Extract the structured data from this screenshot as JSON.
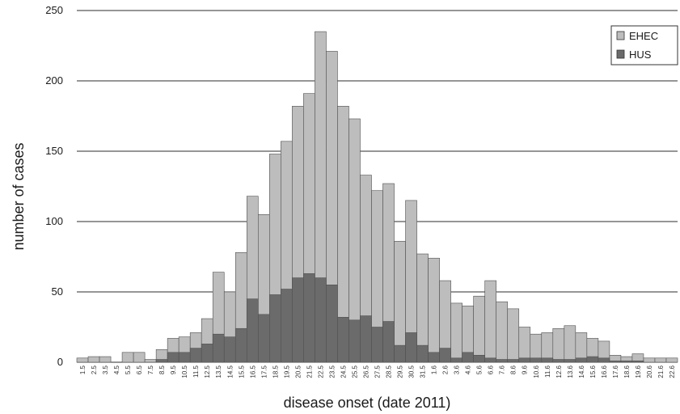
{
  "chart_data": {
    "type": "bar",
    "stacked": "overlay",
    "title": "",
    "xlabel": "disease onset (date 2011)",
    "ylabel": "number of cases",
    "ylim": [
      0,
      250
    ],
    "yticks": [
      0,
      50,
      100,
      150,
      200,
      250
    ],
    "grid": true,
    "legend_position": "top-right",
    "categories": [
      "1.5",
      "2.5",
      "3.5",
      "4.5",
      "5.5",
      "6.5",
      "7.5",
      "8.5",
      "9.5",
      "10.5",
      "11.5",
      "12.5",
      "13.5",
      "14.5",
      "15.5",
      "16.5",
      "17.5",
      "18.5",
      "19.5",
      "20.5",
      "21.5",
      "22.5",
      "23.5",
      "24.5",
      "25.5",
      "26.5",
      "27.5",
      "28.5",
      "29.5",
      "30.5",
      "31.5",
      "1.6",
      "2.6",
      "3.6",
      "4.6",
      "5.6",
      "6.6",
      "7.6",
      "8.6",
      "9.6",
      "10.6",
      "11.6",
      "12.6",
      "13.6",
      "14.6",
      "15.6",
      "16.6",
      "17.6",
      "18.6",
      "19.6",
      "20.6",
      "21.6",
      "22.6"
    ],
    "series": [
      {
        "name": "EHEC",
        "color": "#bdbdbd",
        "values": [
          3,
          4,
          4,
          0,
          7,
          7,
          2,
          9,
          17,
          18,
          21,
          31,
          64,
          50,
          78,
          118,
          105,
          148,
          157,
          182,
          191,
          235,
          221,
          182,
          173,
          133,
          122,
          127,
          86,
          115,
          77,
          74,
          58,
          42,
          40,
          47,
          58,
          43,
          38,
          25,
          20,
          21,
          24,
          26,
          21,
          17,
          15,
          5,
          4,
          6,
          3,
          3,
          3
        ]
      },
      {
        "name": "HUS",
        "color": "#6b6b6b",
        "values": [
          0,
          0,
          0,
          0,
          0,
          0,
          0,
          2,
          7,
          7,
          10,
          13,
          20,
          18,
          24,
          45,
          34,
          48,
          52,
          60,
          63,
          60,
          55,
          32,
          30,
          33,
          25,
          29,
          12,
          21,
          12,
          7,
          10,
          3,
          7,
          5,
          3,
          2,
          2,
          3,
          3,
          3,
          2,
          2,
          3,
          4,
          3,
          1,
          1,
          1,
          0,
          0,
          0
        ]
      }
    ]
  }
}
